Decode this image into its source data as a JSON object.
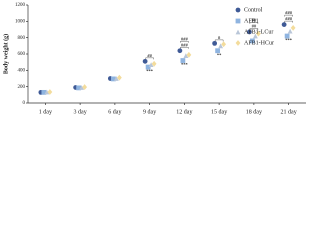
{
  "chart_data": {
    "type": "line",
    "y_label": "Body weight (g)",
    "categories": [
      "1 day",
      "3 day",
      "6 day",
      "9 day",
      "12 day",
      "15 day",
      "18 day",
      "21 day"
    ],
    "series": [
      {
        "name": "Control",
        "color": "#3f5a96",
        "marker": "circle",
        "values": [
          130,
          190,
          300,
          510,
          640,
          730,
          870,
          960
        ]
      },
      {
        "name": "AFB1",
        "color": "#8fb4e0",
        "marker": "square",
        "values": [
          130,
          185,
          295,
          440,
          520,
          640,
          760,
          820
        ]
      },
      {
        "name": "AFB1-LCur",
        "color": "#b9c6d8",
        "marker": "triangle",
        "values": [
          135,
          190,
          300,
          470,
          580,
          700,
          820,
          880
        ]
      },
      {
        "name": "AFB1-HCur",
        "color": "#f3dc9c",
        "marker": "diamond",
        "values": [
          135,
          195,
          310,
          480,
          590,
          720,
          850,
          920
        ]
      }
    ],
    "annotations": [
      {
        "text": "##",
        "category": "9 day",
        "position": "above"
      },
      {
        "text": "***",
        "category": "9 day",
        "position": "below"
      },
      {
        "text": "###",
        "category": "12 day",
        "position": "above"
      },
      {
        "text": "###",
        "category": "12 day",
        "position": "above"
      },
      {
        "text": "***",
        "category": "12 day",
        "position": "below"
      },
      {
        "text": "#",
        "category": "15 day",
        "position": "above"
      },
      {
        "text": "**",
        "category": "15 day",
        "position": "below"
      },
      {
        "text": "##",
        "category": "18 day",
        "position": "above"
      },
      {
        "text": "##",
        "category": "18 day",
        "position": "above"
      },
      {
        "text": "###",
        "category": "21 day",
        "position": "above"
      },
      {
        "text": "###",
        "category": "21 day",
        "position": "above"
      },
      {
        "text": "***",
        "category": "21 day",
        "position": "below"
      }
    ],
    "ylim": [
      0,
      1200
    ],
    "yticks": [
      0,
      200,
      400,
      600,
      800,
      1000,
      1200
    ],
    "legend": "top-right"
  }
}
